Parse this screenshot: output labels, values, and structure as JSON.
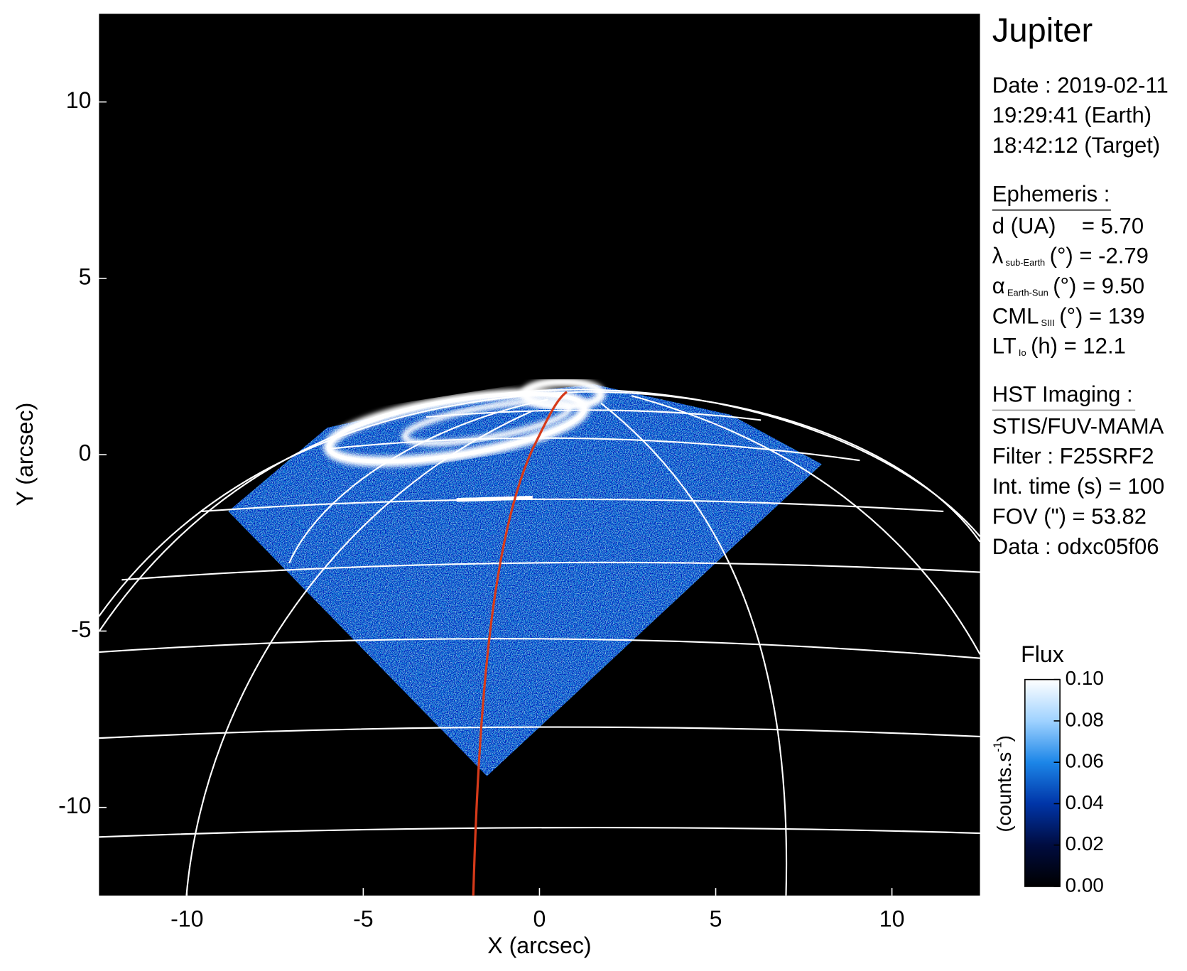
{
  "chart_data": {
    "type": "image",
    "title": "Jupiter",
    "x_label": "X (arcsec)",
    "y_label": "Y (arcsec)",
    "xlim": [
      -12.5,
      12.5
    ],
    "ylim": [
      -12.5,
      12.5
    ],
    "xticks": [
      -10,
      -5,
      0,
      5,
      10
    ],
    "yticks": [
      -10,
      -5,
      0,
      5,
      10
    ],
    "colorbar": {
      "title": "Flux",
      "unit": {
        "text": "(counts.s",
        "sup": "-1",
        "close": ")"
      },
      "clim": [
        0,
        0.1
      ],
      "colormap": [
        "#000000",
        "#000c40",
        "#0035a8",
        "#1c86e8",
        "#9fd2ff",
        "#ffffff"
      ],
      "ticks": [
        {
          "value": 0,
          "label": "0.00"
        },
        {
          "value": 0.02,
          "label": "0.02"
        },
        {
          "value": 0.04,
          "label": "0.04"
        },
        {
          "value": 0.06,
          "label": "0.06"
        },
        {
          "value": 0.08,
          "label": "0.08"
        },
        {
          "value": 0.1,
          "label": "0.10"
        }
      ]
    }
  },
  "info_panel": {
    "date_lines": [
      "Date : 2019-02-11",
      "19:29:41 (Earth)",
      "18:42:12 (Target)"
    ],
    "ephemeris": {
      "title": "Ephemeris :",
      "rows": [
        {
          "main": "d (UA)",
          "rest": "= 5.70"
        },
        {
          "main": "λ",
          "sub": "sub-Earth",
          "rest": "(°) = -2.79"
        },
        {
          "main": "α",
          "sub": "Earth-Sun",
          "rest": "(°) = 9.50"
        },
        {
          "main": "CML",
          "sub": "SIII",
          "rest": "(°) = 139"
        },
        {
          "main": "LT",
          "sub": "Io",
          "rest": "(h) = 12.1"
        }
      ]
    },
    "hst": {
      "title": "HST Imaging :",
      "lines": [
        "STIS/FUV-MAMA",
        "Filter : F25SRF2",
        "Int. time (s) = 100",
        "FOV (\") = 53.82",
        "Data : odxc05f06"
      ]
    }
  }
}
